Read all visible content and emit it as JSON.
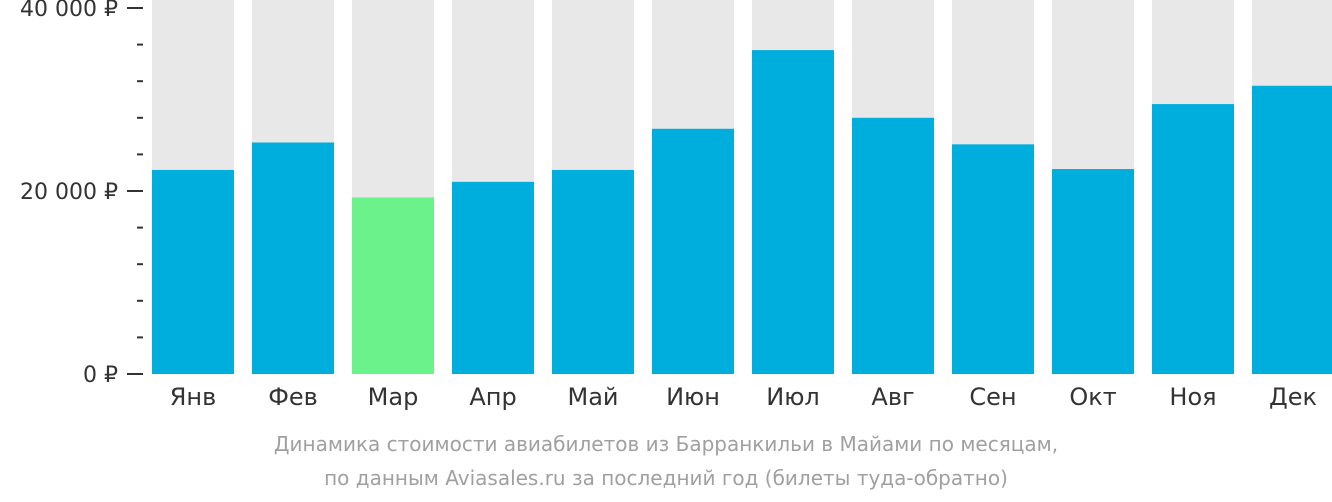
{
  "chart_data": {
    "type": "bar",
    "categories": [
      "Янв",
      "Фев",
      "Мар",
      "Апр",
      "Май",
      "Июн",
      "Июл",
      "Авг",
      "Сен",
      "Окт",
      "Ноя",
      "Дек"
    ],
    "values": [
      22300,
      25300,
      19300,
      21000,
      22300,
      26800,
      35400,
      28000,
      25100,
      22400,
      29500,
      31500
    ],
    "highlight_index": 2,
    "ylim": [
      0,
      40000
    ],
    "y_ticks": [
      {
        "value": 40000,
        "label": "40 000 ₽"
      },
      {
        "value": 20000,
        "label": "20 000 ₽"
      },
      {
        "value": 0,
        "label": "0 ₽"
      }
    ],
    "minor_tick_step": 4000,
    "grid": false,
    "colors": {
      "bar": "#00AEDD",
      "highlight": "#6CF28A",
      "background_bar": "#E8E8E8",
      "axis": "#333333"
    },
    "caption": [
      "Динамика стоимости авиабилетов из Барранкильи в Майами по месяцам,",
      "по данным Aviasales.ru за последний год (билеты туда-обратно)"
    ]
  }
}
